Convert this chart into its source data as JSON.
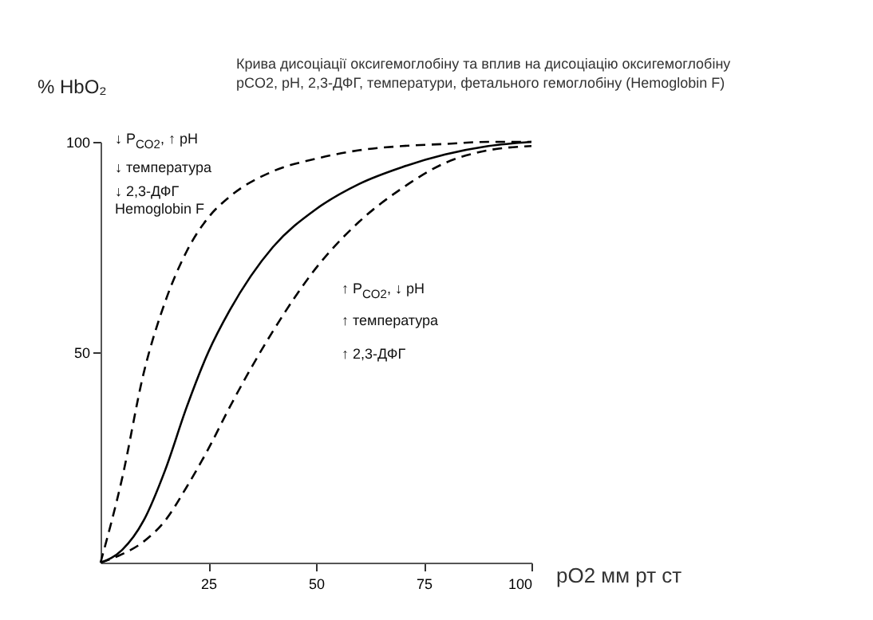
{
  "chart_data": {
    "type": "line",
    "title": "Крива дисоціації оксигемоглобіну та вплив на дисоціацію оксигемоглобіну pCO2, pH, 2,3-ДФГ, температури, фетального гемоглобіну (Hemoglobin F)",
    "xlabel": "pO2 мм рт ст",
    "ylabel": "% HbO₂",
    "x": [
      0,
      5,
      10,
      15,
      20,
      25,
      30,
      40,
      50,
      60,
      70,
      80,
      90,
      100
    ],
    "series": [
      {
        "color": "#000000",
        "line_style": "dashed",
        "values": [
          0,
          20,
          45,
          62,
          74,
          82,
          87,
          93,
          96,
          98,
          99,
          99.5,
          100,
          100
        ]
      },
      {
        "color": "#000000",
        "line_style": "solid",
        "values": [
          0,
          3,
          10,
          22,
          37,
          50,
          60,
          75,
          84,
          90,
          94,
          97,
          99,
          100
        ]
      },
      {
        "color": "#000000",
        "line_style": "dashed",
        "values": [
          0,
          2,
          5,
          10,
          18,
          27,
          37,
          55,
          70,
          81,
          89,
          95,
          98,
          99
        ]
      }
    ],
    "xlim": [
      0,
      100
    ],
    "ylim": [
      0,
      100
    ],
    "xticks": [
      25,
      50,
      75,
      100
    ],
    "yticks": [
      50,
      100
    ],
    "marker": "none",
    "annotations": [
      "↓ P$_{CO2}$,  ↑ pH",
      "↓ температура",
      "↓ 2,3-ДФГ",
      "Hemoglobin F",
      "↑ P$_{CO2}$,  ↓ pH",
      "↑ температура",
      "↑ 2,3-ДФГ"
    ]
  }
}
